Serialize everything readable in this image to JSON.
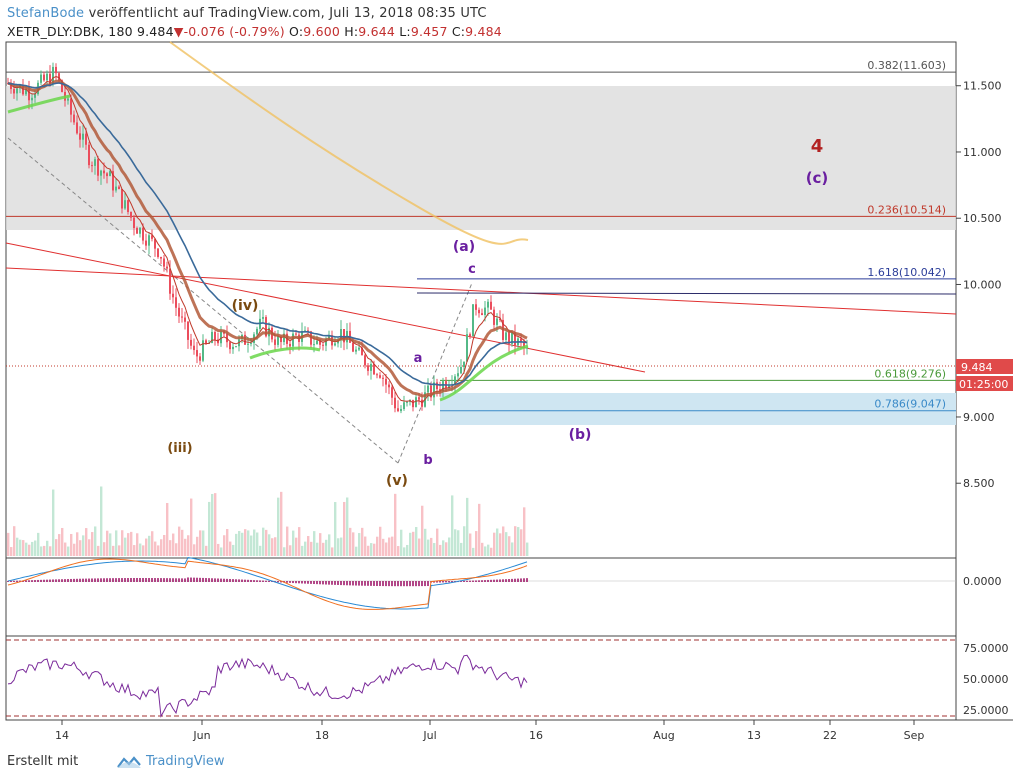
{
  "header": {
    "author": "StefanBode",
    "published_text": "veröffentlicht auf TradingView.com, Juli 13, 2018 08:35 UTC",
    "symbol": "XETR_DLY:DBK, 180",
    "last": "9.484",
    "change": "-0.076",
    "change_pct": "(-0.79%)",
    "o_label": "O:",
    "o_value": "9.600",
    "h_label": "H:",
    "h_value": "9.644",
    "l_label": "L:",
    "l_value": "9.457",
    "c_label": "C:",
    "c_value": "9.484"
  },
  "footer": {
    "made_with": "Erstellt mit",
    "brand": "TradingView"
  },
  "chart_data": {
    "type": "candlestick",
    "price_axis": {
      "min": 8.1,
      "max": 11.8,
      "ticks": [
        "11.500",
        "11.000",
        "10.500",
        "10.000",
        "9.000",
        "8.500"
      ]
    },
    "current_price": "9.484",
    "countdown": "01:25:00",
    "time_axis": [
      "14",
      "Jun",
      "18",
      "Jul",
      "16",
      "Aug",
      "13",
      "22",
      "Sep"
    ],
    "fib_levels": [
      {
        "label": "0.382(11.603)",
        "value": 11.603,
        "color": "#555555"
      },
      {
        "label": "0.236(10.514)",
        "value": 10.514,
        "color": "#c0392b"
      },
      {
        "label": "1.618(10.042)",
        "value": 10.042,
        "color": "#2c3e9a"
      },
      {
        "label": "0.618(9.276)",
        "value": 9.276,
        "color": "#4a9a3a"
      },
      {
        "label": "0.786(9.047)",
        "value": 9.047,
        "color": "#3a8ac8"
      }
    ],
    "wave_labels": [
      {
        "text": "4",
        "color": "#b22222"
      },
      {
        "text": "(c)",
        "color": "#6a1fa0"
      },
      {
        "text": "(a)",
        "color": "#6a1fa0"
      },
      {
        "text": "c",
        "color": "#6a1fa0"
      },
      {
        "text": "(iv)",
        "color": "#7a4a10"
      },
      {
        "text": "a",
        "color": "#6a1fa0"
      },
      {
        "text": "(b)",
        "color": "#6a1fa0"
      },
      {
        "text": "(iii)",
        "color": "#7a4a10"
      },
      {
        "text": "b",
        "color": "#6a1fa0"
      },
      {
        "text": "(v)",
        "color": "#7a4a10"
      }
    ],
    "macd_axis": {
      "ticks": [
        "0.0000"
      ]
    },
    "rsi_axis": {
      "ticks": [
        "75.0000",
        "50.0000",
        "25.0000"
      ]
    },
    "colors": {
      "up": "#53b987",
      "down": "#eb4d5c",
      "ema_fast": "#c0392b",
      "ema_mid": "#b35a3a",
      "ema_slow": "#3a6a9a",
      "ma200": "#f0c060",
      "rsi": "#7a2a9a"
    }
  }
}
